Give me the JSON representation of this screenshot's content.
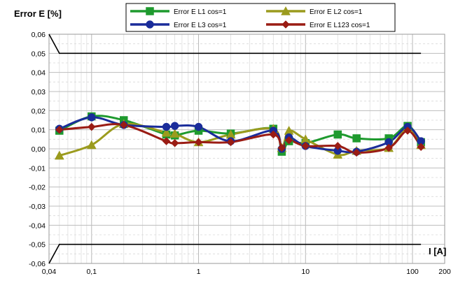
{
  "chart_data": {
    "type": "line",
    "title": "",
    "ylabel": "Error E [%]",
    "xlabel": "I [A]",
    "x_scale": "log",
    "xlim": [
      0.04,
      200
    ],
    "ylim": [
      -0.06,
      0.06
    ],
    "x_ticks": [
      0.04,
      0.1,
      1,
      10,
      100,
      200
    ],
    "x_tick_labels": [
      "0,04",
      "0,1",
      "1",
      "10",
      "100",
      "200"
    ],
    "y_ticks": [
      -0.06,
      -0.05,
      -0.04,
      -0.03,
      -0.02,
      -0.01,
      0,
      0.01,
      0.02,
      0.03,
      0.04,
      0.05,
      0.06
    ],
    "y_tick_labels": [
      "-0,06",
      "-0,05",
      "-0,04",
      "-0,03",
      "-0,02",
      "-0,01",
      "0,00",
      "0,01",
      "0,02",
      "0,03",
      "0,04",
      "0,05",
      "0,06"
    ],
    "grid": true,
    "legend_position": "top-center",
    "x": [
      0.05,
      0.1,
      0.2,
      0.5,
      0.6,
      1,
      2,
      5,
      6,
      7,
      10,
      20,
      30,
      60,
      90,
      120
    ],
    "series": [
      {
        "name": "Error E L1 cos=1",
        "color": "#1e9a2e",
        "marker": "square",
        "values": [
          0.0095,
          0.017,
          0.015,
          0.0075,
          0.007,
          0.0095,
          0.008,
          0.0105,
          -0.0015,
          0.004,
          0.003,
          0.0075,
          0.0055,
          0.0055,
          0.012,
          0.0035
        ]
      },
      {
        "name": "Error E L2 cos=1",
        "color": "#9b9b1e",
        "marker": "triangle",
        "values": [
          -0.0035,
          0.002,
          0.013,
          0.0085,
          0.008,
          0.0035,
          0.0075,
          0.0105,
          0.0005,
          0.0095,
          0.005,
          -0.003,
          -0.001,
          0.0005,
          0.011,
          0.002
        ]
      },
      {
        "name": "Error E L3 cos=1",
        "color": "#1a2c9a",
        "marker": "circle",
        "values": [
          0.0105,
          0.0165,
          0.0125,
          0.0115,
          0.012,
          0.0115,
          0.004,
          0.0095,
          0.0,
          0.006,
          0.0015,
          -0.001,
          -0.0015,
          0.0035,
          0.0115,
          0.004
        ]
      },
      {
        "name": "Error E L123 cos=1",
        "color": "#9a1c14",
        "marker": "diamond",
        "values": [
          0.01,
          0.0115,
          0.0125,
          0.004,
          0.003,
          0.0035,
          0.0035,
          0.0075,
          0.0005,
          0.0045,
          0.0015,
          0.0015,
          -0.002,
          0.0005,
          0.0095,
          0.001
        ]
      }
    ],
    "limit_lines": {
      "color": "#000000",
      "upper": {
        "x": [
          0.04,
          0.05,
          120
        ],
        "y": [
          0.06,
          0.05,
          0.05
        ]
      },
      "lower": {
        "x": [
          0.04,
          0.05,
          120
        ],
        "y": [
          -0.06,
          -0.05,
          -0.05
        ]
      }
    }
  }
}
